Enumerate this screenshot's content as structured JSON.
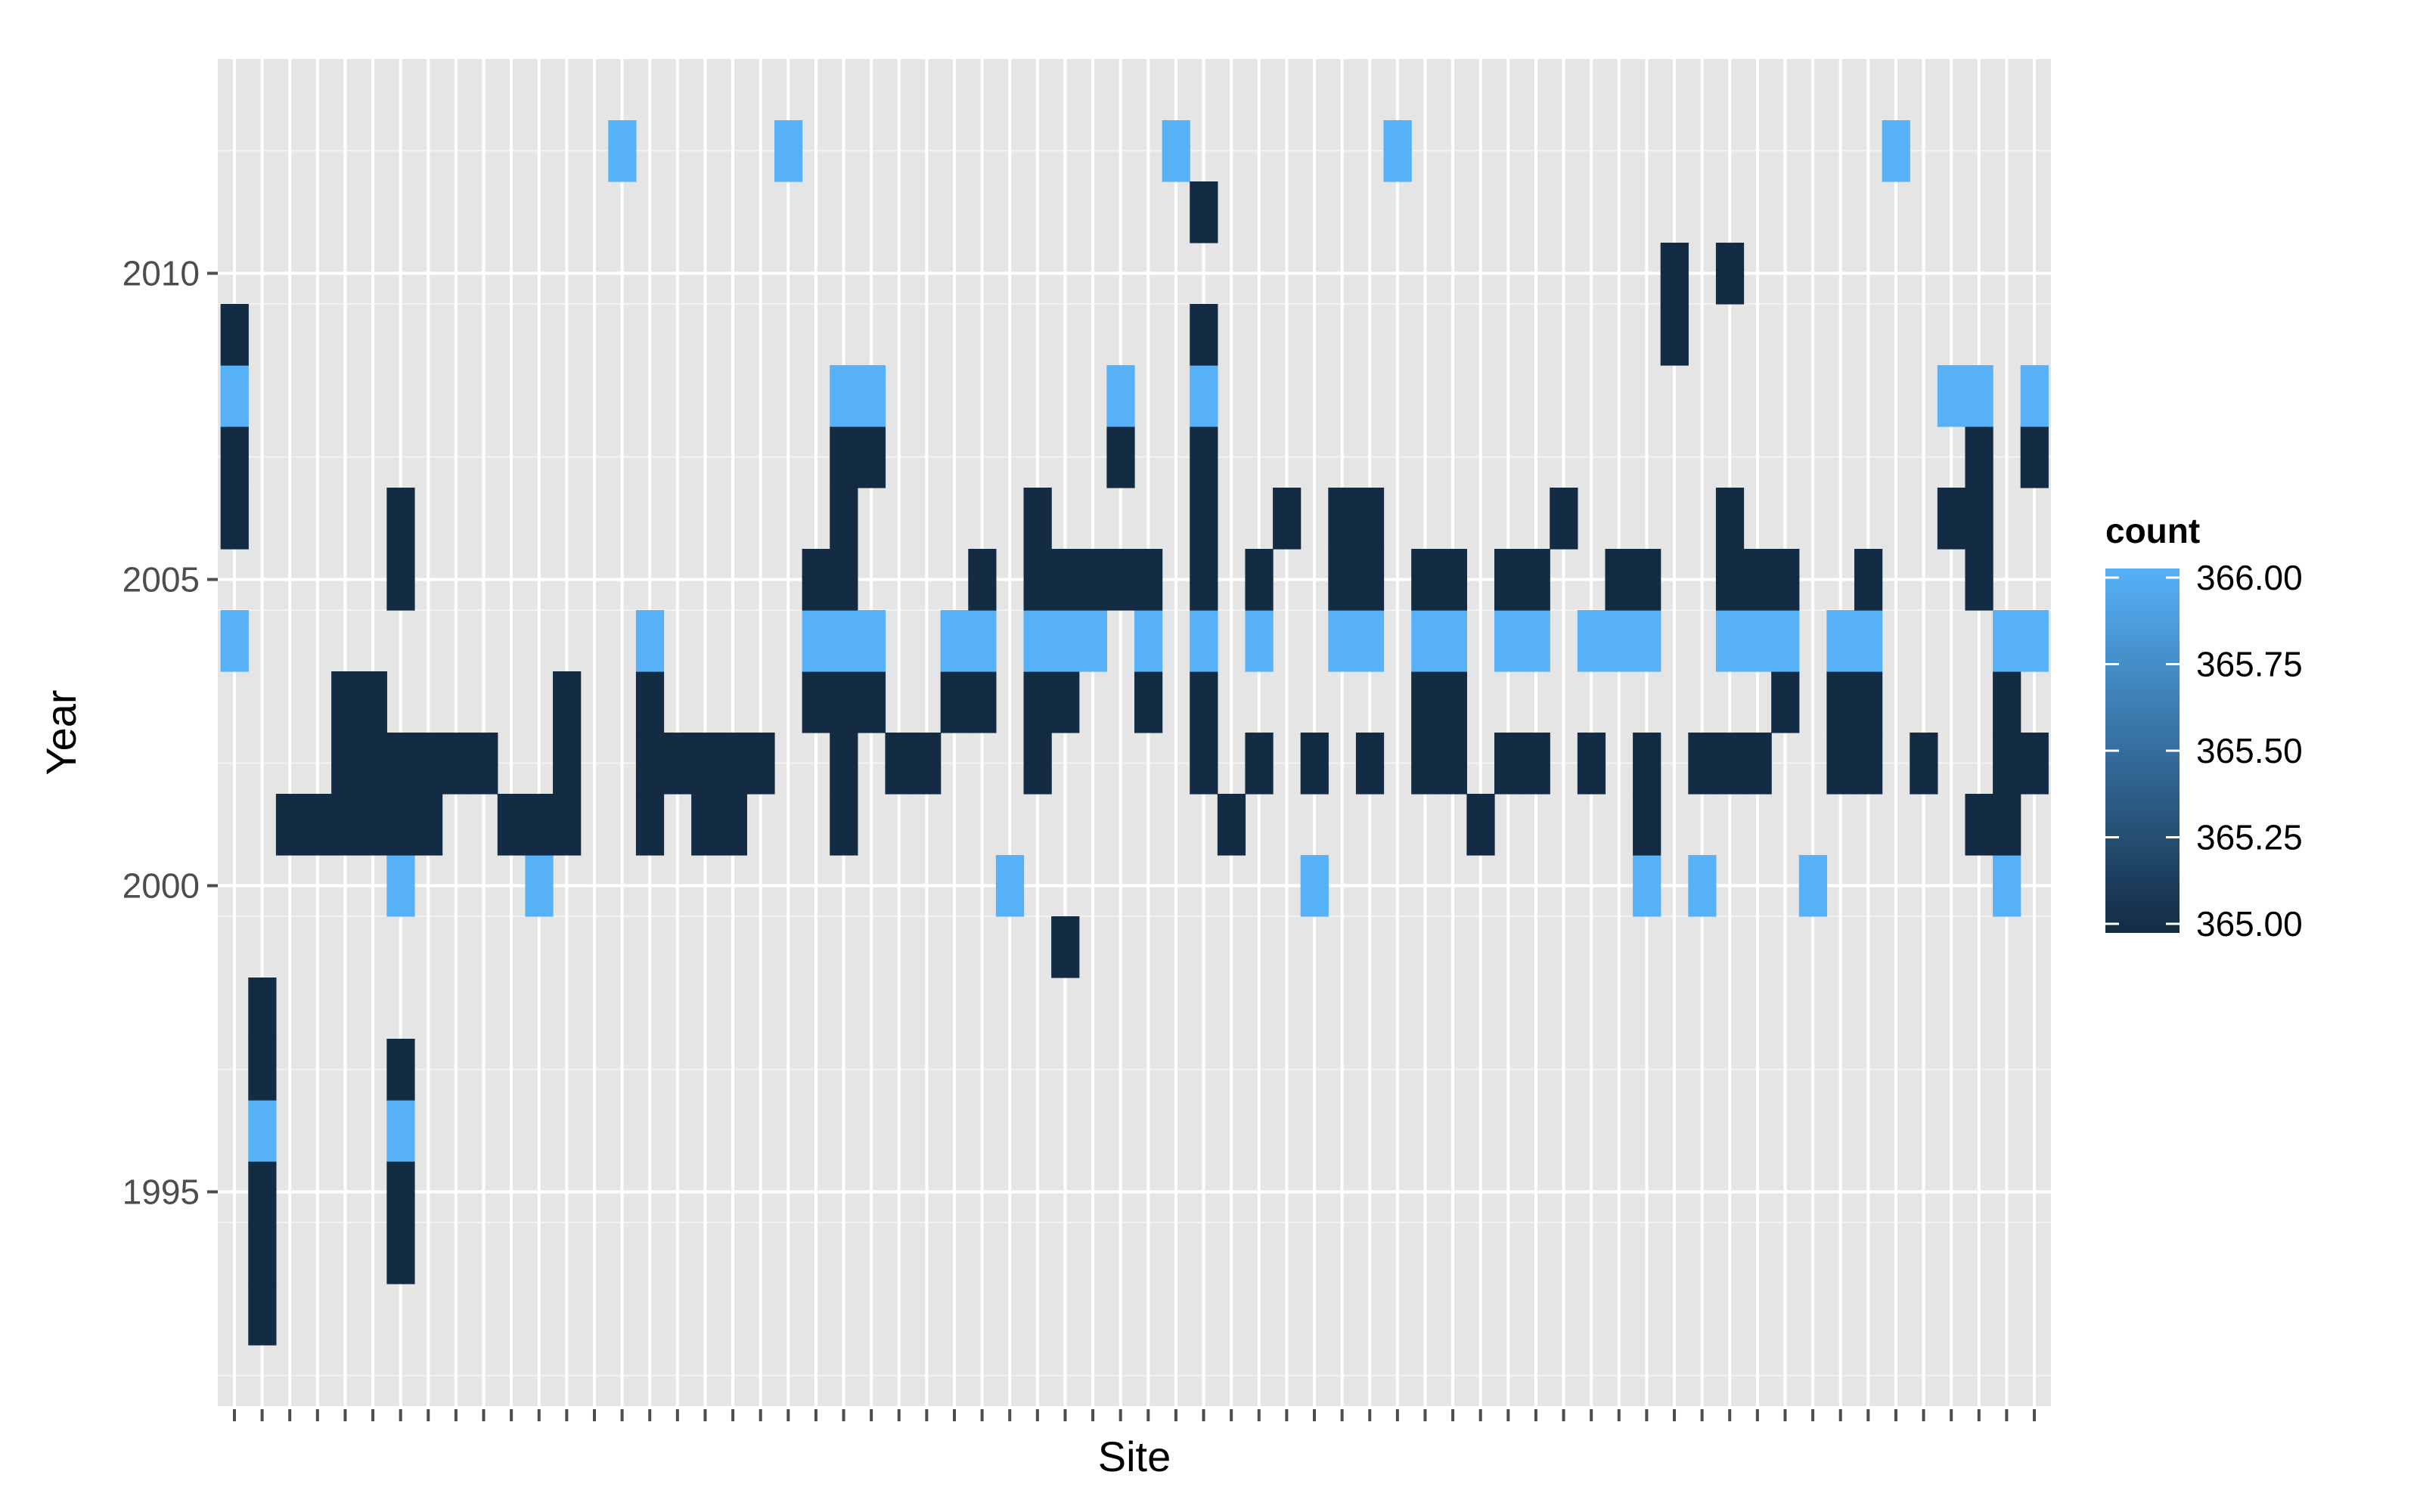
{
  "chart_data": {
    "type": "heatmap",
    "title": "",
    "xlabel": "Site",
    "ylabel": "Year",
    "x_categories_count": 66,
    "x_tick_labels_shown": false,
    "ylim": [
      1991.5,
      2013.5
    ],
    "y_ticks": [
      1995,
      2000,
      2005,
      2010
    ],
    "y_tick_labels": [
      "1995",
      "2000",
      "2005",
      "2010"
    ],
    "grid": true,
    "legend": {
      "title": "count",
      "placement": "right",
      "type": "colorbar",
      "low_color": "#132B43",
      "high_color": "#56B1F7",
      "min": 365.0,
      "max": 366.0,
      "breaks": [
        366.0,
        365.75,
        365.5,
        365.25,
        365.0
      ],
      "labels": [
        "366.00",
        "365.75",
        "365.50",
        "365.25",
        "365.00"
      ]
    },
    "colors": {
      "panel_bg": "#E5E5E5",
      "grid_major": "#FFFFFF",
      "grid_minor": "#F2F2F2",
      "low": "#132B43",
      "high": "#56B1F7"
    },
    "cells": [
      {
        "site": 1,
        "year": 2004,
        "count": 366
      },
      {
        "site": 1,
        "year": 2006,
        "count": 365
      },
      {
        "site": 1,
        "year": 2007,
        "count": 365
      },
      {
        "site": 1,
        "year": 2008,
        "count": 366
      },
      {
        "site": 1,
        "year": 2009,
        "count": 365
      },
      {
        "site": 2,
        "year": 1993,
        "count": 365
      },
      {
        "site": 2,
        "year": 1994,
        "count": 365
      },
      {
        "site": 2,
        "year": 1995,
        "count": 365
      },
      {
        "site": 2,
        "year": 1996,
        "count": 366
      },
      {
        "site": 2,
        "year": 1997,
        "count": 365
      },
      {
        "site": 2,
        "year": 1998,
        "count": 365
      },
      {
        "site": 3,
        "year": 2001,
        "count": 365
      },
      {
        "site": 4,
        "year": 2001,
        "count": 365
      },
      {
        "site": 5,
        "year": 2001,
        "count": 365
      },
      {
        "site": 5,
        "year": 2002,
        "count": 365
      },
      {
        "site": 5,
        "year": 2003,
        "count": 365
      },
      {
        "site": 6,
        "year": 2001,
        "count": 365
      },
      {
        "site": 6,
        "year": 2002,
        "count": 365
      },
      {
        "site": 6,
        "year": 2003,
        "count": 365
      },
      {
        "site": 7,
        "year": 1994,
        "count": 365
      },
      {
        "site": 7,
        "year": 1995,
        "count": 365
      },
      {
        "site": 7,
        "year": 1996,
        "count": 366
      },
      {
        "site": 7,
        "year": 1997,
        "count": 365
      },
      {
        "site": 7,
        "year": 2000,
        "count": 366
      },
      {
        "site": 7,
        "year": 2001,
        "count": 365
      },
      {
        "site": 7,
        "year": 2002,
        "count": 365
      },
      {
        "site": 7,
        "year": 2005,
        "count": 365
      },
      {
        "site": 7,
        "year": 2006,
        "count": 365
      },
      {
        "site": 8,
        "year": 2001,
        "count": 365
      },
      {
        "site": 8,
        "year": 2002,
        "count": 365
      },
      {
        "site": 9,
        "year": 2002,
        "count": 365
      },
      {
        "site": 10,
        "year": 2002,
        "count": 365
      },
      {
        "site": 11,
        "year": 2001,
        "count": 365
      },
      {
        "site": 12,
        "year": 2000,
        "count": 366
      },
      {
        "site": 12,
        "year": 2001,
        "count": 365
      },
      {
        "site": 13,
        "year": 2001,
        "count": 365
      },
      {
        "site": 13,
        "year": 2002,
        "count": 365
      },
      {
        "site": 13,
        "year": 2003,
        "count": 365
      },
      {
        "site": 15,
        "year": 2012,
        "count": 366
      },
      {
        "site": 16,
        "year": 2001,
        "count": 365
      },
      {
        "site": 16,
        "year": 2002,
        "count": 365
      },
      {
        "site": 16,
        "year": 2003,
        "count": 365
      },
      {
        "site": 16,
        "year": 2004,
        "count": 366
      },
      {
        "site": 17,
        "year": 2002,
        "count": 365
      },
      {
        "site": 18,
        "year": 2001,
        "count": 365
      },
      {
        "site": 18,
        "year": 2002,
        "count": 365
      },
      {
        "site": 19,
        "year": 2001,
        "count": 365
      },
      {
        "site": 19,
        "year": 2002,
        "count": 365
      },
      {
        "site": 20,
        "year": 2002,
        "count": 365
      },
      {
        "site": 21,
        "year": 2012,
        "count": 366
      },
      {
        "site": 22,
        "year": 2003,
        "count": 365
      },
      {
        "site": 22,
        "year": 2004,
        "count": 366
      },
      {
        "site": 22,
        "year": 2005,
        "count": 365
      },
      {
        "site": 23,
        "year": 2001,
        "count": 365
      },
      {
        "site": 23,
        "year": 2002,
        "count": 365
      },
      {
        "site": 23,
        "year": 2003,
        "count": 365
      },
      {
        "site": 23,
        "year": 2004,
        "count": 366
      },
      {
        "site": 23,
        "year": 2005,
        "count": 365
      },
      {
        "site": 23,
        "year": 2006,
        "count": 365
      },
      {
        "site": 23,
        "year": 2007,
        "count": 365
      },
      {
        "site": 23,
        "year": 2008,
        "count": 366
      },
      {
        "site": 24,
        "year": 2003,
        "count": 365
      },
      {
        "site": 24,
        "year": 2004,
        "count": 366
      },
      {
        "site": 24,
        "year": 2007,
        "count": 365
      },
      {
        "site": 24,
        "year": 2008,
        "count": 366
      },
      {
        "site": 25,
        "year": 2002,
        "count": 365
      },
      {
        "site": 26,
        "year": 2002,
        "count": 365
      },
      {
        "site": 27,
        "year": 2003,
        "count": 365
      },
      {
        "site": 27,
        "year": 2004,
        "count": 366
      },
      {
        "site": 28,
        "year": 2003,
        "count": 365
      },
      {
        "site": 28,
        "year": 2004,
        "count": 366
      },
      {
        "site": 28,
        "year": 2005,
        "count": 365
      },
      {
        "site": 29,
        "year": 2000,
        "count": 366
      },
      {
        "site": 30,
        "year": 2002,
        "count": 365
      },
      {
        "site": 30,
        "year": 2003,
        "count": 365
      },
      {
        "site": 30,
        "year": 2004,
        "count": 366
      },
      {
        "site": 30,
        "year": 2005,
        "count": 365
      },
      {
        "site": 30,
        "year": 2006,
        "count": 365
      },
      {
        "site": 31,
        "year": 1999,
        "count": 365
      },
      {
        "site": 31,
        "year": 2003,
        "count": 365
      },
      {
        "site": 31,
        "year": 2004,
        "count": 366
      },
      {
        "site": 31,
        "year": 2005,
        "count": 365
      },
      {
        "site": 32,
        "year": 2004,
        "count": 366
      },
      {
        "site": 32,
        "year": 2005,
        "count": 365
      },
      {
        "site": 33,
        "year": 2005,
        "count": 365
      },
      {
        "site": 33,
        "year": 2007,
        "count": 365
      },
      {
        "site": 33,
        "year": 2008,
        "count": 366
      },
      {
        "site": 34,
        "year": 2003,
        "count": 365
      },
      {
        "site": 34,
        "year": 2004,
        "count": 366
      },
      {
        "site": 34,
        "year": 2005,
        "count": 365
      },
      {
        "site": 35,
        "year": 2012,
        "count": 366
      },
      {
        "site": 36,
        "year": 2002,
        "count": 365
      },
      {
        "site": 36,
        "year": 2003,
        "count": 365
      },
      {
        "site": 36,
        "year": 2004,
        "count": 366
      },
      {
        "site": 36,
        "year": 2005,
        "count": 365
      },
      {
        "site": 36,
        "year": 2006,
        "count": 365
      },
      {
        "site": 36,
        "year": 2007,
        "count": 365
      },
      {
        "site": 36,
        "year": 2008,
        "count": 366
      },
      {
        "site": 36,
        "year": 2009,
        "count": 365
      },
      {
        "site": 36,
        "year": 2011,
        "count": 365
      },
      {
        "site": 37,
        "year": 2001,
        "count": 365
      },
      {
        "site": 38,
        "year": 2002,
        "count": 365
      },
      {
        "site": 38,
        "year": 2004,
        "count": 366
      },
      {
        "site": 38,
        "year": 2005,
        "count": 365
      },
      {
        "site": 39,
        "year": 2006,
        "count": 365
      },
      {
        "site": 40,
        "year": 2000,
        "count": 366
      },
      {
        "site": 40,
        "year": 2002,
        "count": 365
      },
      {
        "site": 41,
        "year": 2004,
        "count": 366
      },
      {
        "site": 41,
        "year": 2005,
        "count": 365
      },
      {
        "site": 41,
        "year": 2006,
        "count": 365
      },
      {
        "site": 42,
        "year": 2002,
        "count": 365
      },
      {
        "site": 42,
        "year": 2004,
        "count": 366
      },
      {
        "site": 42,
        "year": 2005,
        "count": 365
      },
      {
        "site": 42,
        "year": 2006,
        "count": 365
      },
      {
        "site": 43,
        "year": 2012,
        "count": 366
      },
      {
        "site": 44,
        "year": 2002,
        "count": 365
      },
      {
        "site": 44,
        "year": 2003,
        "count": 365
      },
      {
        "site": 44,
        "year": 2004,
        "count": 366
      },
      {
        "site": 44,
        "year": 2005,
        "count": 365
      },
      {
        "site": 45,
        "year": 2002,
        "count": 365
      },
      {
        "site": 45,
        "year": 2003,
        "count": 365
      },
      {
        "site": 45,
        "year": 2004,
        "count": 366
      },
      {
        "site": 45,
        "year": 2005,
        "count": 365
      },
      {
        "site": 46,
        "year": 2001,
        "count": 365
      },
      {
        "site": 47,
        "year": 2002,
        "count": 365
      },
      {
        "site": 47,
        "year": 2004,
        "count": 366
      },
      {
        "site": 47,
        "year": 2005,
        "count": 365
      },
      {
        "site": 48,
        "year": 2002,
        "count": 365
      },
      {
        "site": 48,
        "year": 2004,
        "count": 366
      },
      {
        "site": 48,
        "year": 2005,
        "count": 365
      },
      {
        "site": 49,
        "year": 2006,
        "count": 365
      },
      {
        "site": 50,
        "year": 2002,
        "count": 365
      },
      {
        "site": 50,
        "year": 2004,
        "count": 366
      },
      {
        "site": 51,
        "year": 2004,
        "count": 366
      },
      {
        "site": 51,
        "year": 2005,
        "count": 365
      },
      {
        "site": 52,
        "year": 2000,
        "count": 366
      },
      {
        "site": 52,
        "year": 2001,
        "count": 365
      },
      {
        "site": 52,
        "year": 2002,
        "count": 365
      },
      {
        "site": 52,
        "year": 2004,
        "count": 366
      },
      {
        "site": 52,
        "year": 2005,
        "count": 365
      },
      {
        "site": 53,
        "year": 2009,
        "count": 365
      },
      {
        "site": 53,
        "year": 2010,
        "count": 365
      },
      {
        "site": 54,
        "year": 2000,
        "count": 366
      },
      {
        "site": 54,
        "year": 2002,
        "count": 365
      },
      {
        "site": 55,
        "year": 2002,
        "count": 365
      },
      {
        "site": 55,
        "year": 2004,
        "count": 366
      },
      {
        "site": 55,
        "year": 2005,
        "count": 365
      },
      {
        "site": 55,
        "year": 2006,
        "count": 365
      },
      {
        "site": 55,
        "year": 2010,
        "count": 365
      },
      {
        "site": 56,
        "year": 2002,
        "count": 365
      },
      {
        "site": 56,
        "year": 2004,
        "count": 366
      },
      {
        "site": 56,
        "year": 2005,
        "count": 365
      },
      {
        "site": 57,
        "year": 2003,
        "count": 365
      },
      {
        "site": 57,
        "year": 2004,
        "count": 366
      },
      {
        "site": 57,
        "year": 2005,
        "count": 365
      },
      {
        "site": 58,
        "year": 2000,
        "count": 366
      },
      {
        "site": 59,
        "year": 2002,
        "count": 365
      },
      {
        "site": 59,
        "year": 2003,
        "count": 365
      },
      {
        "site": 59,
        "year": 2004,
        "count": 366
      },
      {
        "site": 60,
        "year": 2002,
        "count": 365
      },
      {
        "site": 60,
        "year": 2003,
        "count": 365
      },
      {
        "site": 60,
        "year": 2004,
        "count": 366
      },
      {
        "site": 60,
        "year": 2005,
        "count": 365
      },
      {
        "site": 61,
        "year": 2012,
        "count": 366
      },
      {
        "site": 62,
        "year": 2002,
        "count": 365
      },
      {
        "site": 63,
        "year": 2006,
        "count": 365
      },
      {
        "site": 63,
        "year": 2008,
        "count": 366
      },
      {
        "site": 64,
        "year": 2001,
        "count": 365
      },
      {
        "site": 64,
        "year": 2005,
        "count": 365
      },
      {
        "site": 64,
        "year": 2006,
        "count": 365
      },
      {
        "site": 64,
        "year": 2007,
        "count": 365
      },
      {
        "site": 64,
        "year": 2008,
        "count": 366
      },
      {
        "site": 65,
        "year": 2000,
        "count": 366
      },
      {
        "site": 65,
        "year": 2001,
        "count": 365
      },
      {
        "site": 65,
        "year": 2002,
        "count": 365
      },
      {
        "site": 65,
        "year": 2003,
        "count": 365
      },
      {
        "site": 65,
        "year": 2004,
        "count": 366
      },
      {
        "site": 66,
        "year": 2002,
        "count": 365
      },
      {
        "site": 66,
        "year": 2004,
        "count": 366
      },
      {
        "site": 66,
        "year": 2007,
        "count": 365
      },
      {
        "site": 66,
        "year": 2008,
        "count": 366
      }
    ]
  }
}
